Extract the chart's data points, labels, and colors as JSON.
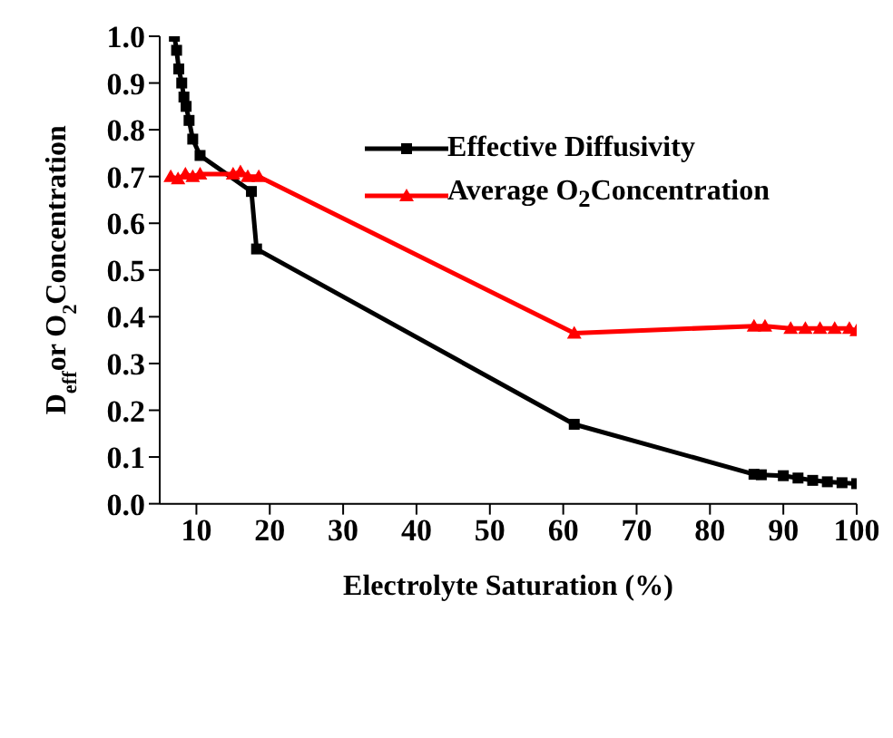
{
  "chart_data": {
    "type": "line",
    "xlabel": "Electrolyte Saturation (%)",
    "ylabel": "D$_{eff}$or O$_{2}$Concentration",
    "xlim": [
      5,
      100
    ],
    "xticks": [
      10,
      20,
      30,
      40,
      50,
      60,
      70,
      80,
      90,
      100
    ],
    "ylim": [
      0,
      1
    ],
    "yticks": [
      {
        "value": 0,
        "label": "0.0"
      },
      0.1,
      0.2,
      0.3,
      0.4,
      0.5,
      0.6,
      0.7,
      0.8,
      0.9,
      {
        "value": 1,
        "label": "1.0"
      }
    ],
    "grid": false,
    "legend": "top right",
    "series": [
      {
        "name": "Effective Diffusivity",
        "color": "#000000",
        "marker": "square",
        "x": [
          7,
          7.3,
          7.6,
          8,
          8.3,
          8.6,
          9,
          9.5,
          10.5,
          17.5,
          18.2,
          61.5,
          86,
          87,
          90,
          92,
          94,
          96,
          98,
          100
        ],
        "values": [
          1.0,
          0.97,
          0.93,
          0.9,
          0.87,
          0.85,
          0.82,
          0.78,
          0.745,
          0.668,
          0.545,
          0.17,
          0.063,
          0.062,
          0.06,
          0.055,
          0.05,
          0.047,
          0.045,
          0.043
        ]
      },
      {
        "name": "Average O$_{2}$Concentration",
        "color": "#ff0000",
        "marker": "triangle",
        "x": [
          6.5,
          7.5,
          8.5,
          9.5,
          10.5,
          15,
          16,
          17,
          18.5,
          61.5,
          86,
          87.5,
          91,
          93,
          95,
          97,
          99,
          100
        ],
        "values": [
          0.7,
          0.695,
          0.705,
          0.7,
          0.705,
          0.705,
          0.71,
          0.7,
          0.7,
          0.365,
          0.38,
          0.38,
          0.375,
          0.375,
          0.375,
          0.375,
          0.375,
          0.37
        ]
      }
    ]
  }
}
